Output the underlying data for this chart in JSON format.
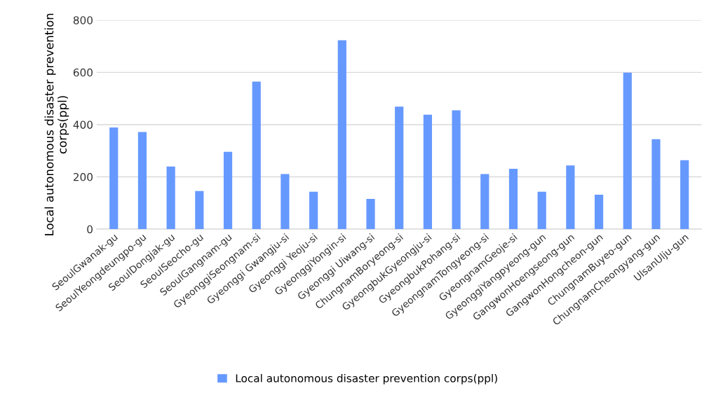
{
  "chart_data": {
    "type": "bar",
    "ylabel": "Local autonomous disaster prevention corps(ppl)",
    "categories": [
      "SeoulGwanak-gu",
      "SeoulYeongdeungpo-gu",
      "SeoulDongjak-gu",
      "SeoulSeocho-gu",
      "SeoulGangnam-gu",
      "GyeonggiSeongnam-si",
      "Gyeonggi Gwangju-si",
      "Gyeonggi Yeoju-si",
      "GyeonggiYongin-si",
      "Gyeonggi Uiwang-si",
      "ChungnamBoryeong-si",
      "GyeongbukGyeongju-si",
      "GyeongbukPohang-si",
      "GyeongnamTongyeong-si",
      "GyeongnamGeoje-si",
      "GyeonggiYangpyeong-gun",
      "GangwonHoengseong-gun",
      "GangwonHongcheon-gun",
      "ChungnamBuyeo-gun",
      "ChungnamCheongyang-gun",
      "UlsanUlju-gun"
    ],
    "series": [
      {
        "name": "Local autonomous disaster prevention corps(ppl)",
        "color": "#6699ff",
        "values": [
          389,
          372,
          240,
          146,
          296,
          565,
          211,
          143,
          723,
          116,
          469,
          438,
          455,
          211,
          231,
          143,
          244,
          132,
          599,
          344,
          264
        ]
      }
    ],
    "ylim": [
      0,
      800
    ],
    "yticks": [
      0,
      200,
      400,
      600,
      800
    ],
    "grid": "y",
    "legend": "bottom"
  }
}
